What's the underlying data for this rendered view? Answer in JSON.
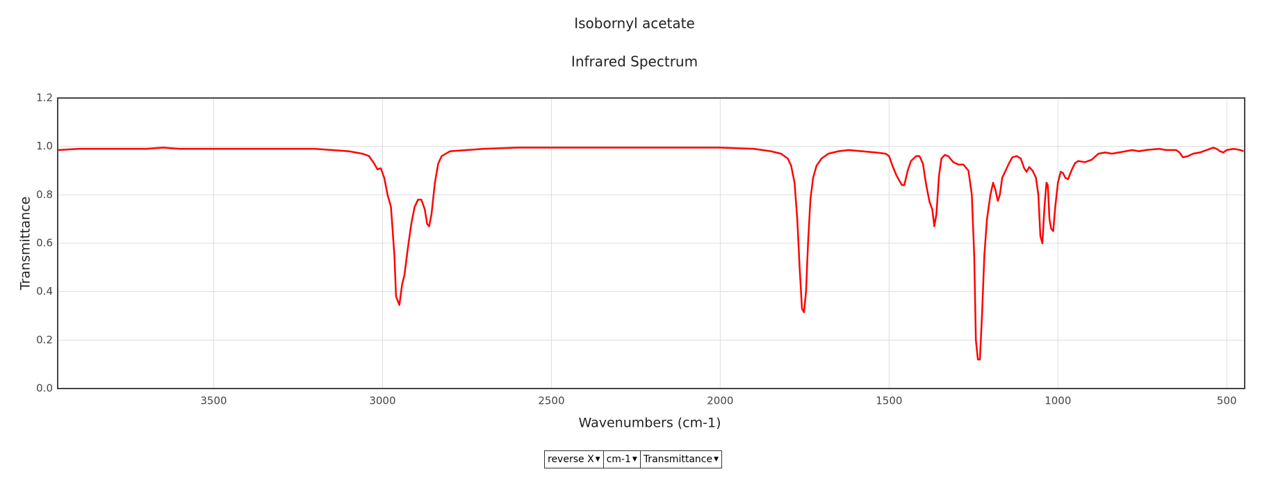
{
  "chart_data": {
    "type": "line",
    "title": "Isobornyl acetate",
    "subtitle": "Infrared Spectrum",
    "x_label": "Wavenumbers (cm-1)",
    "y_label": "Transmittance",
    "color": "#ff0000",
    "grid": true,
    "xlim": [
      3962,
      447
    ],
    "xticks": [
      3500,
      3000,
      2500,
      2000,
      1500,
      1000,
      500
    ],
    "ylim": [
      0,
      1.2
    ],
    "yticks": [
      {
        "value": 0,
        "label": "0.0"
      },
      0.2,
      0.4,
      0.6,
      0.8,
      {
        "value": 1,
        "label": "1.0"
      },
      1.2
    ],
    "x": [
      3960,
      3900,
      3800,
      3700,
      3650,
      3600,
      3500,
      3400,
      3300,
      3200,
      3100,
      3060,
      3040,
      3025,
      3015,
      3005,
      2995,
      2985,
      2975,
      2965,
      2960,
      2950,
      2942,
      2935,
      2925,
      2915,
      2905,
      2895,
      2885,
      2875,
      2868,
      2862,
      2855,
      2845,
      2835,
      2825,
      2800,
      2750,
      2700,
      2600,
      2500,
      2400,
      2300,
      2200,
      2100,
      2000,
      1900,
      1850,
      1820,
      1800,
      1790,
      1780,
      1772,
      1765,
      1758,
      1752,
      1746,
      1740,
      1733,
      1725,
      1715,
      1700,
      1680,
      1650,
      1620,
      1580,
      1540,
      1510,
      1500,
      1490,
      1478,
      1470,
      1462,
      1455,
      1445,
      1435,
      1420,
      1410,
      1400,
      1390,
      1380,
      1372,
      1366,
      1360,
      1352,
      1345,
      1335,
      1325,
      1310,
      1295,
      1280,
      1265,
      1255,
      1248,
      1243,
      1237,
      1231,
      1225,
      1218,
      1210,
      1200,
      1192,
      1185,
      1178,
      1172,
      1165,
      1155,
      1145,
      1135,
      1122,
      1110,
      1100,
      1093,
      1085,
      1075,
      1065,
      1058,
      1052,
      1046,
      1040,
      1034,
      1030,
      1025,
      1020,
      1014,
      1008,
      1000,
      992,
      985,
      978,
      970,
      960,
      950,
      940,
      920,
      900,
      880,
      860,
      840,
      820,
      800,
      780,
      760,
      740,
      700,
      680,
      650,
      640,
      630,
      615,
      600,
      580,
      560,
      540,
      530,
      520,
      510,
      500,
      480,
      460,
      450
    ],
    "values": [
      0.985,
      0.99,
      0.99,
      0.99,
      0.995,
      0.99,
      0.99,
      0.99,
      0.99,
      0.99,
      0.98,
      0.97,
      0.96,
      0.93,
      0.905,
      0.91,
      0.87,
      0.8,
      0.75,
      0.55,
      0.38,
      0.345,
      0.43,
      0.47,
      0.58,
      0.68,
      0.75,
      0.78,
      0.78,
      0.74,
      0.68,
      0.67,
      0.72,
      0.85,
      0.93,
      0.96,
      0.98,
      0.985,
      0.99,
      0.995,
      0.995,
      0.995,
      0.995,
      0.995,
      0.995,
      0.995,
      0.99,
      0.98,
      0.97,
      0.95,
      0.92,
      0.85,
      0.7,
      0.5,
      0.33,
      0.315,
      0.4,
      0.6,
      0.78,
      0.87,
      0.92,
      0.95,
      0.97,
      0.98,
      0.985,
      0.98,
      0.975,
      0.97,
      0.96,
      0.92,
      0.88,
      0.86,
      0.84,
      0.84,
      0.9,
      0.94,
      0.96,
      0.96,
      0.93,
      0.84,
      0.77,
      0.74,
      0.67,
      0.72,
      0.88,
      0.95,
      0.965,
      0.96,
      0.935,
      0.925,
      0.925,
      0.9,
      0.8,
      0.55,
      0.2,
      0.12,
      0.12,
      0.3,
      0.55,
      0.7,
      0.8,
      0.85,
      0.82,
      0.775,
      0.8,
      0.87,
      0.9,
      0.93,
      0.955,
      0.96,
      0.95,
      0.91,
      0.895,
      0.915,
      0.9,
      0.87,
      0.8,
      0.63,
      0.6,
      0.75,
      0.85,
      0.84,
      0.7,
      0.66,
      0.65,
      0.75,
      0.85,
      0.895,
      0.89,
      0.87,
      0.865,
      0.9,
      0.93,
      0.94,
      0.935,
      0.945,
      0.97,
      0.975,
      0.97,
      0.975,
      0.98,
      0.985,
      0.98,
      0.985,
      0.99,
      0.985,
      0.985,
      0.975,
      0.955,
      0.96,
      0.97,
      0.975,
      0.985,
      0.995,
      0.99,
      0.98,
      0.975,
      0.985,
      0.99,
      0.985,
      0.98
    ]
  },
  "controls": [
    "reverse X",
    "cm-1",
    "Transmittance"
  ]
}
